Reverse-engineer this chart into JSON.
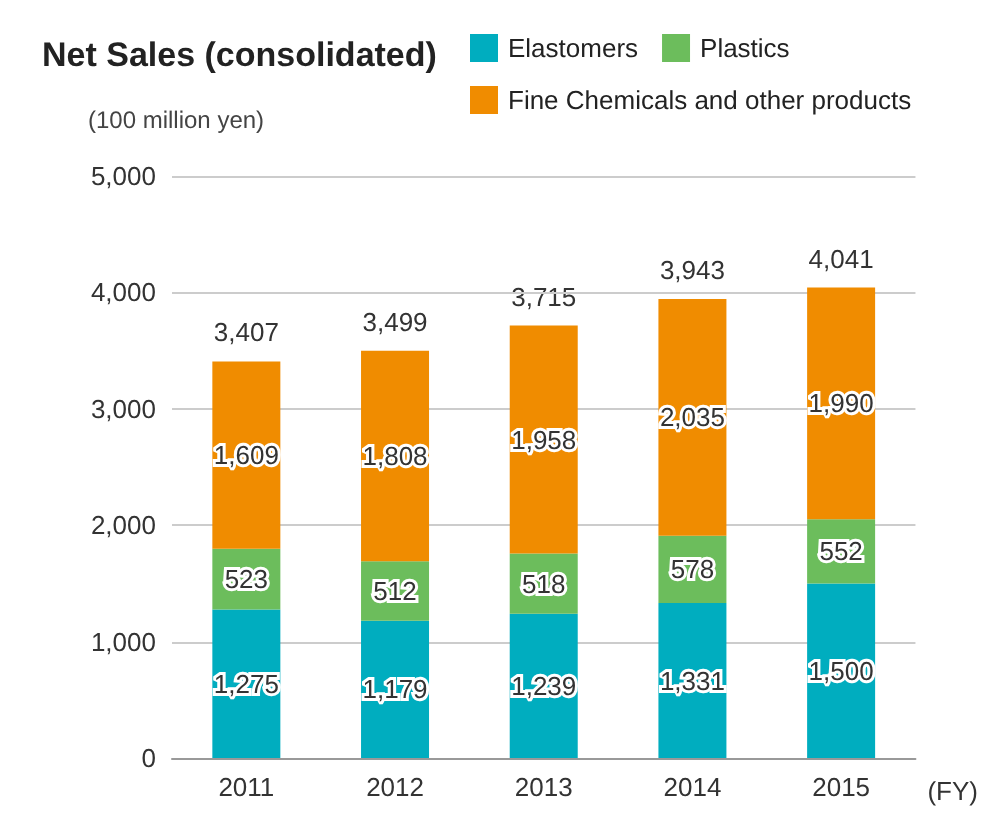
{
  "chart_data": {
    "type": "bar",
    "title": "Net Sales (consolidated)",
    "ylabel": "(100 million yen)",
    "xlabel": "(FY)",
    "stacked": true,
    "legend": "top right",
    "grid": "y",
    "categories": [
      "2011",
      "2012",
      "2013",
      "2014",
      "2015"
    ],
    "ylim": [
      0,
      5000
    ],
    "yticks": [
      0,
      {
        "value": 1000,
        "label": "1,000"
      },
      {
        "value": 2000,
        "label": "2,000"
      },
      {
        "value": 3000,
        "label": "3,000"
      },
      {
        "value": 4000,
        "label": "4,000"
      },
      {
        "value": 5000,
        "label": "5,000"
      }
    ],
    "series": [
      {
        "name": "Elastomers",
        "color": "#00adbf",
        "values": [
          1275,
          1179,
          1239,
          1331,
          1500
        ],
        "value_labels": [
          "1,275",
          "1,179",
          "1,239",
          "1,331",
          "1,500"
        ]
      },
      {
        "name": "Plastics",
        "color": "#6cbd5c",
        "values": [
          523,
          512,
          518,
          578,
          552
        ],
        "value_labels": [
          "523",
          "512",
          "518",
          "578",
          "552"
        ]
      },
      {
        "name": "Fine Chemicals and other products",
        "color": "#f08c00",
        "values": [
          1609,
          1808,
          1958,
          2035,
          1990
        ],
        "value_labels": [
          "1,609",
          "1,808",
          "1,958",
          "2,035",
          "1,990"
        ]
      }
    ],
    "totals": [
      "3,407",
      "3,499",
      "3,715",
      "3,943",
      "4,041"
    ]
  }
}
